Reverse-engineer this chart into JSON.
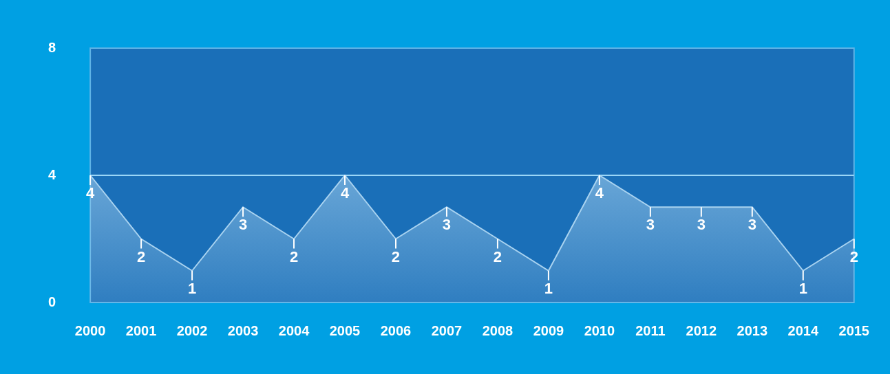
{
  "chart_data": {
    "type": "area",
    "categories": [
      "2000",
      "2001",
      "2002",
      "2003",
      "2004",
      "2005",
      "2006",
      "2007",
      "2008",
      "2009",
      "2010",
      "2011",
      "2012",
      "2013",
      "2014",
      "2015"
    ],
    "series": [
      {
        "color": "#a9d3f0",
        "values": [
          4,
          2,
          1,
          3,
          2,
          4,
          2,
          3,
          2,
          1,
          4,
          3,
          3,
          3,
          1,
          2
        ]
      }
    ],
    "ylim": [
      0,
      8
    ],
    "yticks": [
      0,
      4,
      8
    ],
    "ref_lines": [
      {
        "axis": "y",
        "value": 4,
        "color": "#9ad6f7"
      }
    ],
    "data_labels": true,
    "legend": false
  }
}
